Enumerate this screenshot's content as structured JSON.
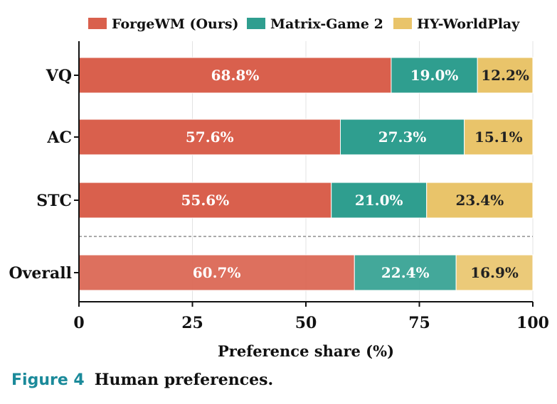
{
  "chart_data": {
    "type": "bar",
    "orientation": "horizontal",
    "stacked": true,
    "categories": [
      "VQ",
      "AC",
      "STC",
      "Overall"
    ],
    "series": [
      {
        "name": "ForgeWM (Ours)",
        "color": "#d9604d",
        "values": [
          68.8,
          57.6,
          55.6,
          60.7
        ],
        "labels": [
          "68.8%",
          "57.6%",
          "55.6%",
          "60.7%"
        ]
      },
      {
        "name": "Matrix-Game 2",
        "color": "#2f9e8f",
        "values": [
          19.0,
          27.3,
          21.0,
          22.4
        ],
        "labels": [
          "19.0%",
          "27.3%",
          "21.0%",
          "22.4%"
        ]
      },
      {
        "name": "HY-WorldPlay",
        "color": "#e9c46a",
        "values": [
          12.2,
          15.1,
          23.4,
          16.9
        ],
        "labels": [
          "12.2%",
          "15.1%",
          "23.4%",
          "16.9%"
        ]
      }
    ],
    "xlabel": "Preference share (%)",
    "ylabel": "",
    "xlim": [
      0,
      100
    ],
    "xticks": [
      "0",
      "25",
      "50",
      "75",
      "100"
    ],
    "grid": "vertical",
    "legend": "top",
    "separator_before": "Overall"
  },
  "caption": {
    "number": "Figure 4",
    "text": "Human preferences."
  }
}
